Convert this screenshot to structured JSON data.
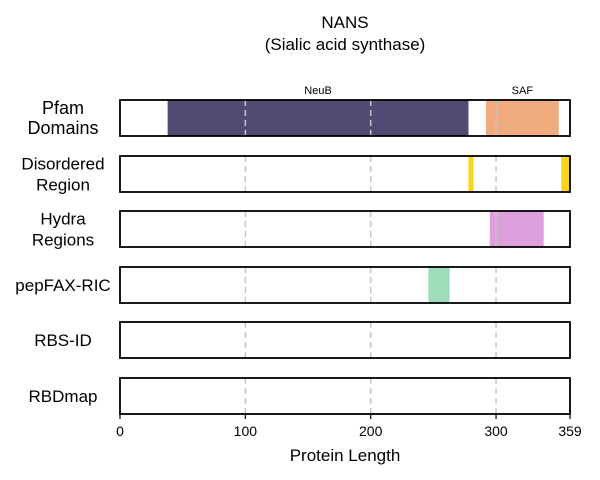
{
  "chart_data": {
    "type": "domain_track",
    "title": "NANS",
    "subtitle": "(Sialic acid synthase)",
    "xlabel": "Protein Length",
    "xlim": [
      0,
      359
    ],
    "x_ticks": [
      0,
      100,
      200,
      300,
      359
    ],
    "gridlines": [
      100,
      200,
      300
    ],
    "rows": [
      {
        "label_lines": [
          "Pfam",
          "Domains"
        ],
        "segments": [
          {
            "start": 38,
            "end": 278,
            "color": "#524a72",
            "label": "NeuB"
          },
          {
            "start": 292,
            "end": 350,
            "color": "#f0ac7e",
            "label": "SAF"
          }
        ]
      },
      {
        "label_lines": [
          "Disordered",
          "Region"
        ],
        "segments": [
          {
            "start": 278,
            "end": 282,
            "color": "#f8d51a"
          },
          {
            "start": 352,
            "end": 359,
            "color": "#f8d51a"
          }
        ]
      },
      {
        "label_lines": [
          "Hydra",
          "Regions"
        ],
        "segments": [
          {
            "start": 295,
            "end": 338,
            "color": "#dda0dd"
          }
        ]
      },
      {
        "label_lines": [
          "pepFAX-RIC"
        ],
        "segments": [
          {
            "start": 246,
            "end": 263,
            "color": "#9fdcb9"
          }
        ]
      },
      {
        "label_lines": [
          "RBS-ID"
        ],
        "segments": []
      },
      {
        "label_lines": [
          "RBDmap"
        ],
        "segments": []
      }
    ]
  }
}
